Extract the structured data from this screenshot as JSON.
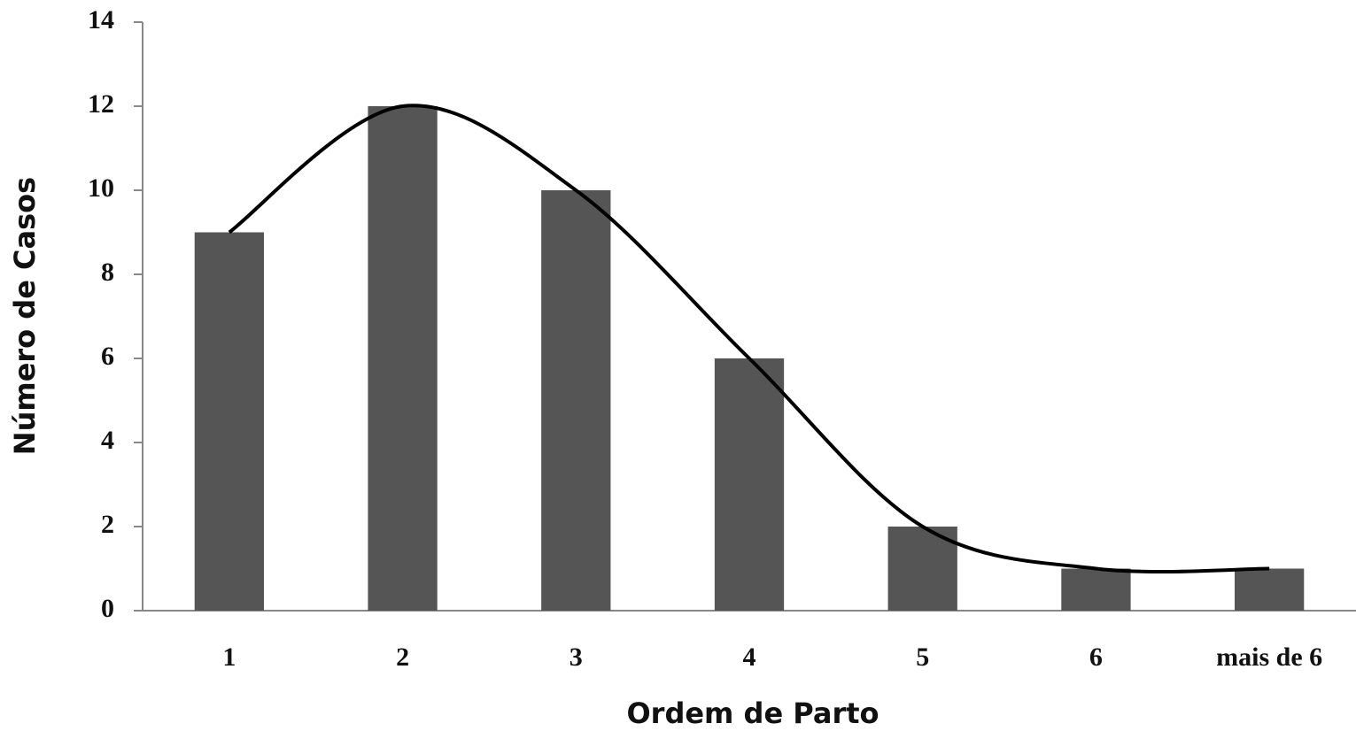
{
  "chart_data": {
    "type": "bar",
    "categories": [
      "1",
      "2",
      "3",
      "4",
      "5",
      "6",
      "mais de 6"
    ],
    "values": [
      9,
      12,
      10,
      6,
      2,
      1,
      1
    ],
    "color": "#555555",
    "trend_line_color": "#000000",
    "ylim": [
      0,
      14
    ],
    "yticks": [
      0,
      2,
      4,
      6,
      8,
      10,
      12,
      14
    ],
    "x_label": "Ordem de Parto",
    "y_label": "Número de Casos"
  }
}
